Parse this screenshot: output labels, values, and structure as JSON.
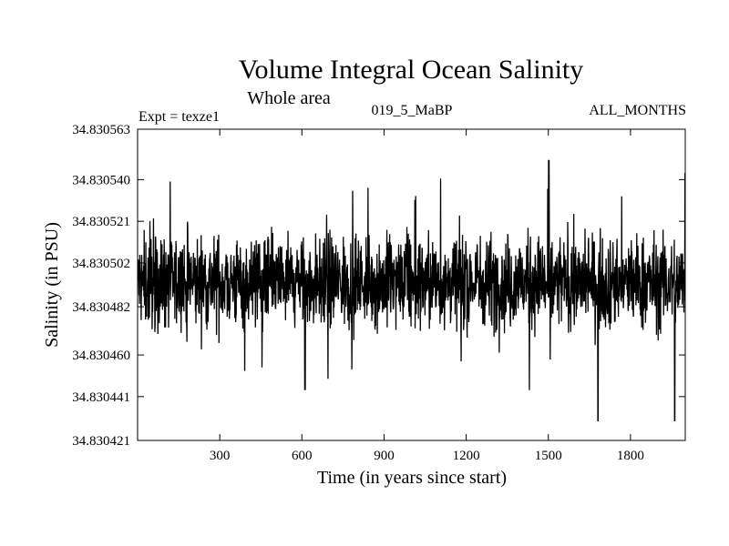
{
  "chart_data": {
    "type": "line",
    "title": "Volume Integral Ocean Salinity",
    "subtitle": "Whole area",
    "experiment": "Expt = texze1",
    "period": "019_5_MaBP",
    "months": "ALL_MONTHS",
    "xlabel": "Time (in years since start)",
    "ylabel": "Salinity (in PSU)",
    "xlim": [
      0,
      2000
    ],
    "ylim": [
      34.830421,
      34.830563
    ],
    "xticks": [
      300,
      600,
      900,
      1200,
      1500,
      1800
    ],
    "xtick_labels": [
      "300",
      "600",
      "900",
      "1200",
      "1500",
      "1800"
    ],
    "yticks": [
      34.830421,
      34.830441,
      34.83046,
      34.830482,
      34.830502,
      34.830521,
      34.83054,
      34.830563
    ],
    "ytick_labels": [
      "34.830421",
      "34.830441",
      "34.830460",
      "34.830482",
      "34.830502",
      "34.830521",
      "34.830540",
      "34.830563"
    ],
    "series": [
      {
        "name": "Salinity",
        "sample_points": {
          "x": [
            0,
            60,
            120,
            180,
            300,
            460,
            610,
            760,
            900,
            1020,
            1200,
            1280,
            1430,
            1500,
            1560,
            1680,
            1750,
            1800,
            1960,
            2000
          ],
          "y": [
            34.830498,
            34.830492,
            34.830485,
            34.830466,
            34.830487,
            34.830492,
            34.830444,
            34.830488,
            34.830497,
            34.830485,
            34.830499,
            34.83051,
            34.830444,
            34.830549,
            34.830497,
            34.83043,
            34.830513,
            34.830495,
            34.83043,
            34.830503
          ]
        },
        "n_points": 2000,
        "mean": 34.830493,
        "range_typical": [
          34.830462,
          34.830528
        ],
        "extremes": {
          "max": {
            "x": 1502,
            "y": 34.830549
          },
          "max_end": {
            "x": 1998,
            "y": 34.830543
          },
          "min": {
            "x": 1681,
            "y": 34.83043
          },
          "min_end": {
            "x": 1961,
            "y": 34.83043
          },
          "min_mid": {
            "x": 612,
            "y": 34.830444
          }
        }
      }
    ]
  }
}
